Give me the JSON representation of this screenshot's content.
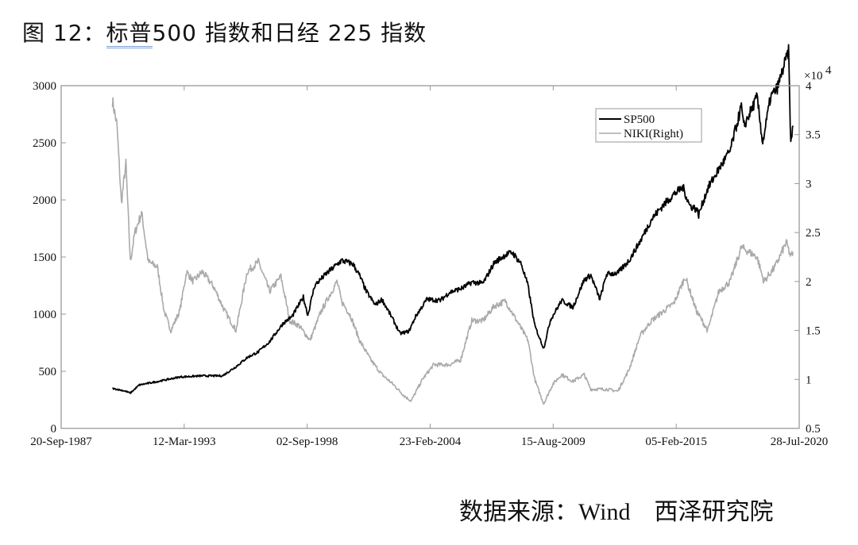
{
  "title": {
    "prefix": "图 12：",
    "underlined": "标普",
    "rest": "500 指数和日经 225 指数"
  },
  "source": "数据来源：Wind　西泽研究院",
  "chart_data": {
    "type": "line",
    "title": "标普500指数和日经225指数",
    "xlabel": "",
    "ylabel": "",
    "x_ticks": [
      "20-Sep-1987",
      "12-Mar-1993",
      "02-Sep-1998",
      "23-Feb-2004",
      "15-Aug-2009",
      "05-Feb-2015",
      "28-Jul-2020"
    ],
    "y_left": {
      "ticks": [
        0,
        500,
        1000,
        1500,
        2000,
        2500,
        3000
      ],
      "ylim": [
        0,
        3000
      ]
    },
    "y_right": {
      "ticks": [
        0.5,
        1,
        1.5,
        2,
        2.5,
        3,
        3.5,
        4
      ],
      "ylim": [
        0.5,
        4
      ],
      "multiplier": "×10^4"
    },
    "legend": {
      "position": "upper-right",
      "entries": [
        "SP500",
        "NIKI(Right)"
      ]
    },
    "grid": false,
    "series": [
      {
        "name": "SP500",
        "axis": "left",
        "color": "#000000",
        "x": [
          1990.0,
          1990.5,
          1990.8,
          1991.2,
          1992.0,
          1993.0,
          1994.0,
          1994.9,
          1995.5,
          1996.0,
          1996.5,
          1997.0,
          1997.6,
          1998.0,
          1998.5,
          1998.7,
          1999.0,
          1999.5,
          2000.2,
          2000.7,
          2001.0,
          2001.3,
          2001.7,
          2002.0,
          2002.5,
          2002.8,
          2003.2,
          2003.5,
          2004.0,
          2004.6,
          2005.0,
          2005.6,
          2006.0,
          2006.5,
          2007.0,
          2007.5,
          2007.8,
          2008.2,
          2008.5,
          2008.8,
          2009.0,
          2009.2,
          2009.5,
          2010.0,
          2010.5,
          2011.0,
          2011.3,
          2011.7,
          2012.0,
          2012.5,
          2013.0,
          2013.5,
          2014.0,
          2014.5,
          2015.0,
          2015.4,
          2015.7,
          2016.0,
          2016.1,
          2016.5,
          2017.0,
          2017.5,
          2018.0,
          2018.1,
          2018.7,
          2018.95,
          2019.3,
          2019.6,
          2020.1,
          2020.2,
          2020.3
        ],
        "values": [
          350,
          330,
          310,
          380,
          410,
          450,
          460,
          460,
          540,
          620,
          670,
          760,
          920,
          980,
          1150,
          990,
          1250,
          1350,
          1470,
          1440,
          1340,
          1200,
          1080,
          1130,
          950,
          830,
          850,
          980,
          1130,
          1120,
          1190,
          1230,
          1280,
          1270,
          1450,
          1520,
          1540,
          1440,
          1250,
          900,
          800,
          700,
          950,
          1120,
          1060,
          1300,
          1340,
          1130,
          1350,
          1360,
          1470,
          1640,
          1830,
          1950,
          2050,
          2110,
          1950,
          1920,
          1870,
          2100,
          2270,
          2430,
          2820,
          2640,
          2900,
          2500,
          2900,
          2980,
          3300,
          2480,
          2650
        ]
      },
      {
        "name": "NIKI(Right)",
        "axis": "right",
        "color": "#aaaaaa",
        "x": [
          1990.0,
          1990.2,
          1990.4,
          1990.6,
          1990.8,
          1991.0,
          1991.3,
          1991.6,
          1992.0,
          1992.3,
          1992.6,
          1993.0,
          1993.3,
          1993.6,
          1994.0,
          1994.5,
          1995.0,
          1995.5,
          1996.0,
          1996.5,
          1997.0,
          1997.5,
          1997.9,
          1998.3,
          1998.8,
          1999.3,
          2000.0,
          2000.2,
          2000.6,
          2001.0,
          2001.5,
          2002.0,
          2002.5,
          2003.0,
          2003.3,
          2003.8,
          2004.3,
          2005.0,
          2005.5,
          2006.0,
          2006.5,
          2007.0,
          2007.5,
          2008.0,
          2008.5,
          2008.8,
          2009.2,
          2009.6,
          2010.0,
          2010.5,
          2011.0,
          2011.3,
          2012.0,
          2012.5,
          2013.0,
          2013.5,
          2014.0,
          2015.0,
          2015.5,
          2016.0,
          2016.5,
          2017.0,
          2017.5,
          2018.0,
          2018.7,
          2019.0,
          2019.5,
          2020.0,
          2020.2,
          2020.3
        ],
        "values": [
          38500,
          36000,
          28000,
          32000,
          22000,
          25000,
          27000,
          22000,
          21500,
          17000,
          15000,
          17000,
          21000,
          20000,
          21000,
          19500,
          17000,
          15000,
          21000,
          22000,
          19000,
          20500,
          16000,
          15500,
          14000,
          17000,
          20000,
          18000,
          16500,
          14000,
          12000,
          10500,
          9500,
          8300,
          7800,
          10000,
          11500,
          11500,
          12000,
          16000,
          16000,
          17500,
          18000,
          16000,
          14000,
          10000,
          7500,
          9500,
          10500,
          9800,
          10500,
          9000,
          9000,
          8800,
          11000,
          14500,
          16000,
          17800,
          20500,
          17000,
          15000,
          19000,
          20000,
          23500,
          22500,
          20000,
          21500,
          24000,
          22500,
          23000
        ]
      }
    ]
  }
}
